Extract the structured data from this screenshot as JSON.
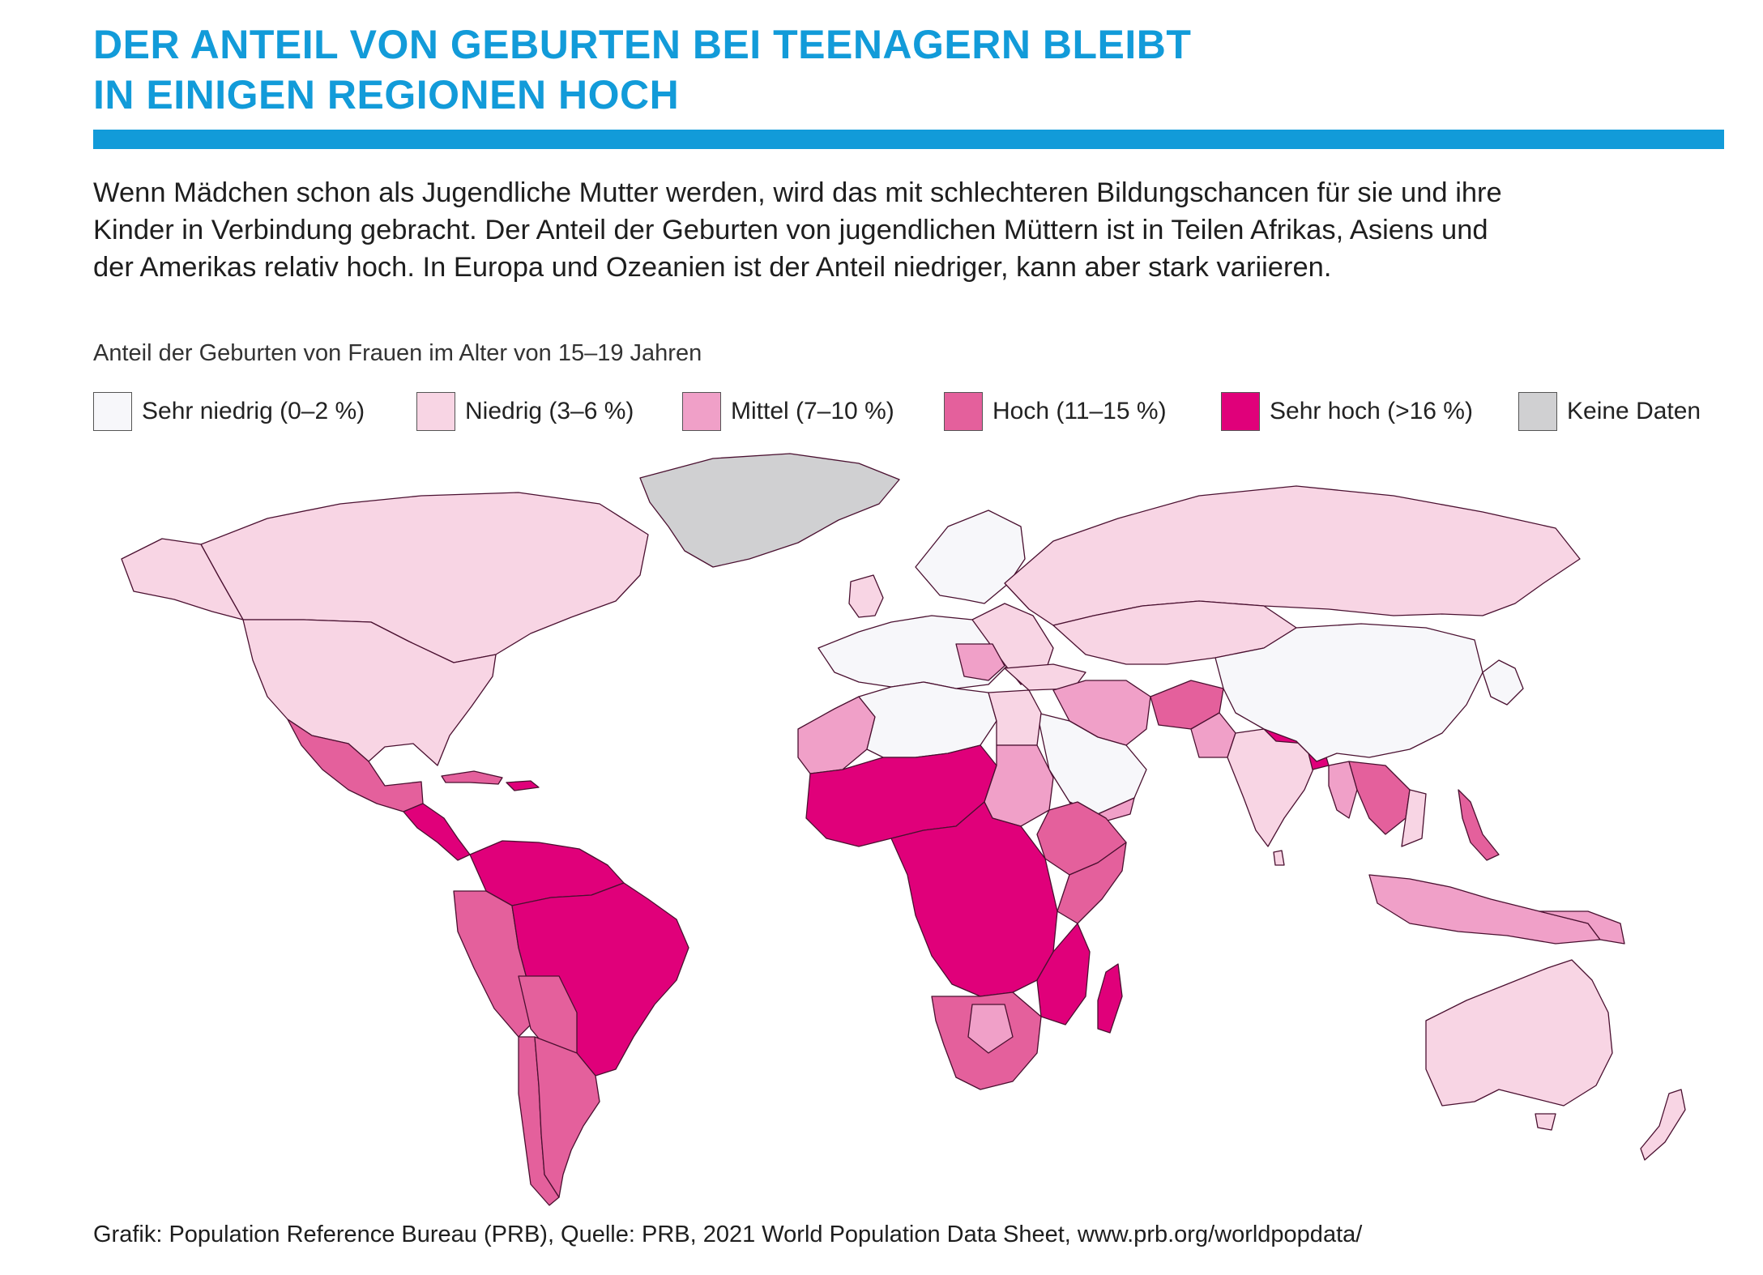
{
  "header": {
    "title_line1": "DER ANTEIL VON GEBURTEN BEI TEENAGERN BLEIBT",
    "title_line2": "IN EINIGEN REGIONEN HOCH"
  },
  "intro": {
    "line1": "Wenn Mädchen schon als Jugendliche Mutter werden, wird das mit schlechteren Bildungschancen für sie und ihre",
    "line2": "Kinder in Verbindung gebracht. Der Anteil der Geburten von jugendlichen Müttern ist in Teilen Afrikas, Asiens und",
    "line3": "der Amerikas relativ hoch. In Europa und Ozeanien ist der Anteil niedriger, kann aber stark variieren."
  },
  "map": {
    "subtitle": "Anteil der Geburten von Frauen im Alter von 15–19 Jahren",
    "legend": [
      {
        "label": "Sehr niedrig (0–2 %)",
        "color": "#f7f7fa"
      },
      {
        "label": "Niedrig (3–6 %)",
        "color": "#f8d5e4"
      },
      {
        "label": "Mittel (7–10 %)",
        "color": "#f0a0c8"
      },
      {
        "label": "Hoch (11–15 %)",
        "color": "#e4609c"
      },
      {
        "label": "Sehr hoch (>16 %)",
        "color": "#e0007a"
      },
      {
        "label": "Keine Daten",
        "color": "#d0d0d2"
      }
    ]
  },
  "footer": {
    "source": "Grafik: Population Reference Bureau (PRB), Quelle: PRB, 2021 World Population Data Sheet, www.prb.org/worldpopdata/"
  }
}
